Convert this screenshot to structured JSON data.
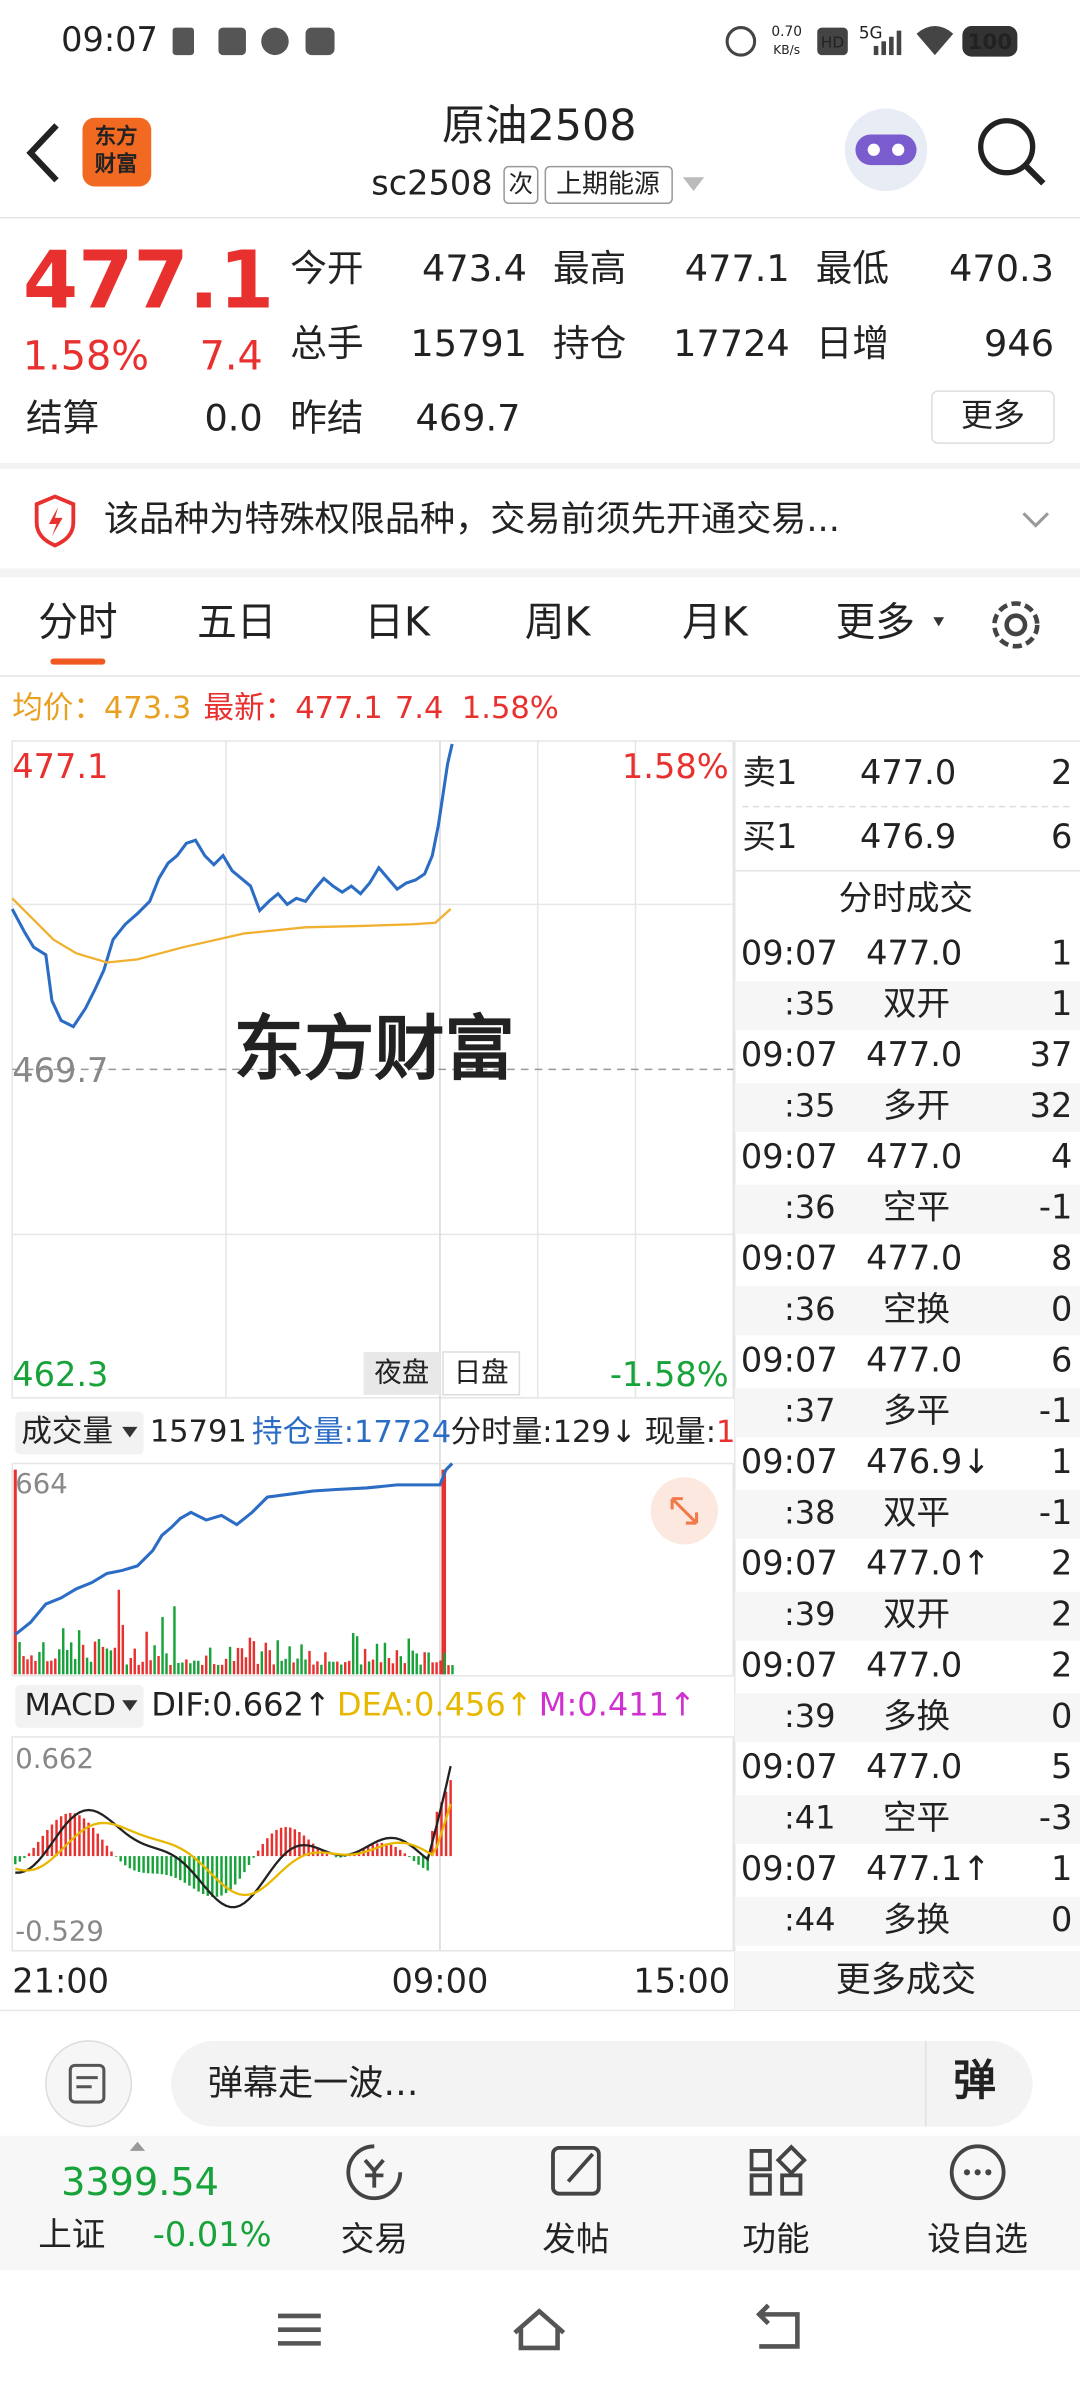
{
  "status_bar": {
    "time": "09:07",
    "net_speed": "0.70",
    "net_unit": "KB/s",
    "hd": "HD",
    "network": "5G",
    "battery": "100"
  },
  "header": {
    "logo_lines": [
      "东方",
      "财富"
    ],
    "title": "原油2508",
    "code": "sc2508",
    "tag": "次",
    "exchange": "上期能源"
  },
  "quote": {
    "price": "477.1",
    "change_pct": "1.58%",
    "change": "7.4",
    "fields": [
      {
        "label": "今开",
        "value": "473.4"
      },
      {
        "label": "最高",
        "value": "477.1"
      },
      {
        "label": "最低",
        "value": "470.3"
      },
      {
        "label": "总手",
        "value": "15791"
      },
      {
        "label": "持仓",
        "value": "17724"
      },
      {
        "label": "日增",
        "value": "946"
      },
      {
        "label": "结算",
        "value": "0.0"
      },
      {
        "label": "昨结",
        "value": "469.7"
      }
    ],
    "more_button": "更多"
  },
  "notice": {
    "text": "该品种为特殊权限品种，交易前须先开通交易..."
  },
  "tabs": {
    "items": [
      "分时",
      "五日",
      "日K",
      "周K",
      "月K",
      "更多"
    ],
    "active": 0
  },
  "chart_info": {
    "avg_label": "均价：",
    "avg": "473.3",
    "last_label": "最新：",
    "last": "477.1",
    "change": "7.4",
    "change_pct": "1.58%"
  },
  "price_chart": {
    "high": "477.1",
    "high_pct": "1.58%",
    "prev_settle": "469.7",
    "low": "462.3",
    "low_pct": "-1.58%",
    "watermark": "东方财富",
    "session_buttons": [
      "夜盘",
      "日盘"
    ]
  },
  "volume_panel": {
    "indicator": "成交量",
    "total": "15791",
    "oi_label": "持仓量:",
    "oi": "17724",
    "tick_label": "分时量:",
    "tick": "129↓",
    "cur_label": "现量:",
    "cur": "1",
    "max": "664"
  },
  "macd_panel": {
    "indicator": "MACD",
    "dif_label": "DIF:",
    "dif": "0.662↑",
    "dea_label": "DEA:",
    "dea": "0.456↑",
    "m_label": "M:",
    "m": "0.411↑",
    "max": "0.662",
    "min": "-0.529"
  },
  "x_axis": [
    "21:00",
    "09:00",
    "15:00"
  ],
  "order_book": [
    {
      "label": "卖1",
      "price": "477.0",
      "volume": "2"
    },
    {
      "label": "买1",
      "price": "476.9",
      "volume": "6"
    }
  ],
  "trades": {
    "title": "分时成交",
    "more": "更多成交",
    "rows": [
      {
        "time": "09:07",
        "price": "477.0",
        "volume": "1",
        "second": ":35",
        "type": "双开",
        "change": "1",
        "volume_dir": "up",
        "type_dir": "up"
      },
      {
        "time": "09:07",
        "price": "477.0",
        "volume": "37",
        "second": ":35",
        "type": "多开",
        "change": "32",
        "volume_dir": "up",
        "type_dir": "up"
      },
      {
        "time": "09:07",
        "price": "477.0",
        "volume": "4",
        "second": ":36",
        "type": "空平",
        "change": "-1",
        "volume_dir": "up",
        "type_dir": "up"
      },
      {
        "time": "09:07",
        "price": "477.0",
        "volume": "8",
        "second": ":36",
        "type": "空换",
        "change": "0",
        "volume_dir": "down",
        "type_dir": "down"
      },
      {
        "time": "09:07",
        "price": "477.0",
        "volume": "6",
        "second": ":37",
        "type": "多平",
        "change": "-1",
        "volume_dir": "up",
        "type_dir": "down"
      },
      {
        "time": "09:07",
        "price": "476.9↓",
        "volume": "1",
        "second": ":38",
        "type": "双平",
        "change": "-1",
        "volume_dir": "down",
        "type_dir": "down"
      },
      {
        "time": "09:07",
        "price": "477.0↑",
        "volume": "2",
        "second": ":39",
        "type": "双开",
        "change": "2",
        "volume_dir": "up",
        "type_dir": "up"
      },
      {
        "time": "09:07",
        "price": "477.0",
        "volume": "2",
        "second": ":39",
        "type": "多换",
        "change": "0",
        "volume_dir": "up",
        "type_dir": "up"
      },
      {
        "time": "09:07",
        "price": "477.0",
        "volume": "5",
        "second": ":41",
        "type": "空平",
        "change": "-3",
        "volume_dir": "up",
        "type_dir": "up"
      },
      {
        "time": "09:07",
        "price": "477.1↑",
        "volume": "1",
        "second": ":44",
        "type": "多换",
        "change": "0",
        "volume_dir": "up",
        "type_dir": "up"
      }
    ]
  },
  "comment_bar": {
    "placeholder": "弹幕走一波…",
    "button": "弹"
  },
  "bottom_nav": {
    "index_value": "3399.54",
    "index_name": "上证",
    "index_change": "-0.01%",
    "items": [
      "交易",
      "发帖",
      "功能",
      "设自选"
    ]
  }
}
